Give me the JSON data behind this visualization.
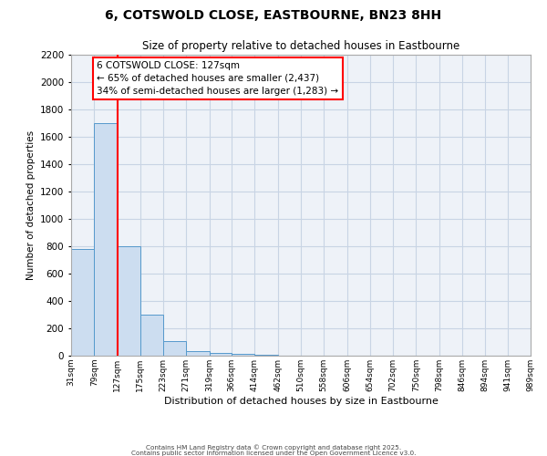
{
  "title": "6, COTSWOLD CLOSE, EASTBOURNE, BN23 8HH",
  "subtitle": "Size of property relative to detached houses in Eastbourne",
  "xlabel": "Distribution of detached houses by size in Eastbourne",
  "ylabel": "Number of detached properties",
  "bar_color": "#ccddf0",
  "bar_edge_color": "#5599cc",
  "background_color": "#eef2f8",
  "grid_color": "#c8d4e4",
  "categories": [
    "31sqm",
    "79sqm",
    "127sqm",
    "175sqm",
    "223sqm",
    "271sqm",
    "319sqm",
    "366sqm",
    "414sqm",
    "462sqm",
    "510sqm",
    "558sqm",
    "606sqm",
    "654sqm",
    "702sqm",
    "750sqm",
    "798sqm",
    "846sqm",
    "894sqm",
    "941sqm",
    "989sqm"
  ],
  "bar_lefts": [
    31,
    79,
    127,
    175,
    223,
    271,
    319,
    366,
    414,
    462,
    510,
    558,
    606,
    654,
    702,
    750,
    798,
    846,
    894,
    941
  ],
  "bar_widths": [
    48,
    48,
    48,
    48,
    48,
    48,
    47,
    48,
    48,
    48,
    48,
    48,
    48,
    48,
    48,
    48,
    48,
    48,
    47,
    48
  ],
  "bar_heights": [
    780,
    1700,
    800,
    300,
    110,
    35,
    20,
    15,
    8,
    0,
    3,
    0,
    0,
    0,
    0,
    0,
    0,
    0,
    0,
    0
  ],
  "ylim": [
    0,
    2200
  ],
  "xlim": [
    31,
    989
  ],
  "red_line_x": 127,
  "annotation_title": "6 COTSWOLD CLOSE: 127sqm",
  "annotation_line1": "← 65% of detached houses are smaller (2,437)",
  "annotation_line2": "34% of semi-detached houses are larger (1,283) →",
  "yticks": [
    0,
    200,
    400,
    600,
    800,
    1000,
    1200,
    1400,
    1600,
    1800,
    2000,
    2200
  ],
  "xtick_positions": [
    31,
    79,
    127,
    175,
    223,
    271,
    319,
    366,
    414,
    462,
    510,
    558,
    606,
    654,
    702,
    750,
    798,
    846,
    894,
    941,
    989
  ],
  "footnote1": "Contains HM Land Registry data © Crown copyright and database right 2025.",
  "footnote2": "Contains public sector information licensed under the Open Government Licence v3.0."
}
